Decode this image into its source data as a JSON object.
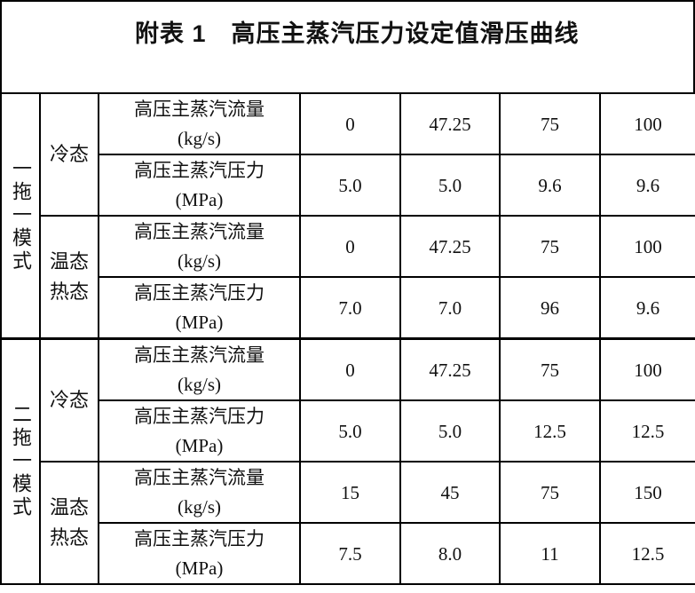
{
  "title": "附表 1　高压主蒸汽压力设定值滑压曲线",
  "groups": [
    {
      "mode": "一拖一模式",
      "states": [
        {
          "label": "冷态",
          "rows": [
            {
              "param": "高压主蒸汽流量",
              "unit": "(kg/s)",
              "values": [
                "0",
                "47.25",
                "75",
                "100"
              ]
            },
            {
              "param": "高压主蒸汽压力",
              "unit": "(MPa)",
              "values": [
                "5.0",
                "5.0",
                "9.6",
                "9.6"
              ]
            }
          ]
        },
        {
          "label": "温态热态",
          "rows": [
            {
              "param": "高压主蒸汽流量",
              "unit": "(kg/s)",
              "values": [
                "0",
                "47.25",
                "75",
                "100"
              ]
            },
            {
              "param": "高压主蒸汽压力",
              "unit": "(MPa)",
              "values": [
                "7.0",
                "7.0",
                "96",
                "9.6"
              ]
            }
          ]
        }
      ]
    },
    {
      "mode": "二拖一模式",
      "states": [
        {
          "label": "冷态",
          "rows": [
            {
              "param": "高压主蒸汽流量",
              "unit": "(kg/s)",
              "values": [
                "0",
                "47.25",
                "75",
                "100"
              ]
            },
            {
              "param": "高压主蒸汽压力",
              "unit": "(MPa)",
              "values": [
                "5.0",
                "5.0",
                "12.5",
                "12.5"
              ]
            }
          ]
        },
        {
          "label": "温态热态",
          "rows": [
            {
              "param": "高压主蒸汽流量",
              "unit": "(kg/s)",
              "values": [
                "15",
                "45",
                "75",
                "150"
              ]
            },
            {
              "param": "高压主蒸汽压力",
              "unit": "(MPa)",
              "values": [
                "7.5",
                "8.0",
                "11",
                "12.5"
              ]
            }
          ]
        }
      ]
    }
  ]
}
